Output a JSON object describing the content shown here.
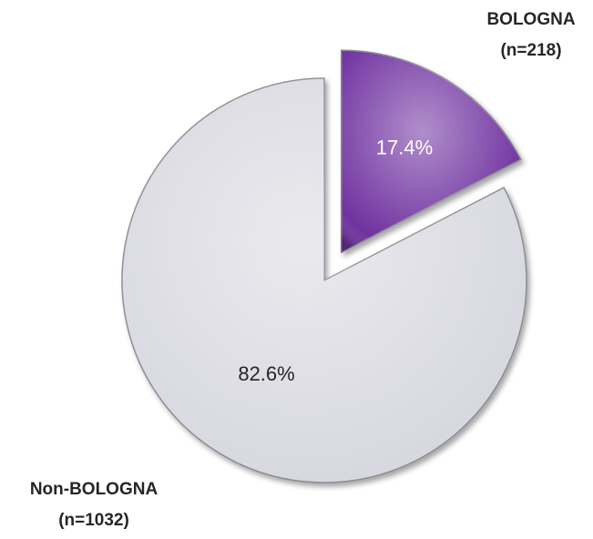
{
  "chart_data": {
    "type": "pie",
    "categories": [
      "BOLOGNA",
      "Non-BOLOGNA"
    ],
    "category_counts": [
      "(n=218)",
      "(n=1032)"
    ],
    "values": [
      17.4,
      82.6
    ],
    "value_labels": [
      "17.4%",
      "82.6%"
    ],
    "colors": [
      "#7030a0",
      "#d8d8e0"
    ],
    "exploded": [
      true,
      false
    ]
  }
}
